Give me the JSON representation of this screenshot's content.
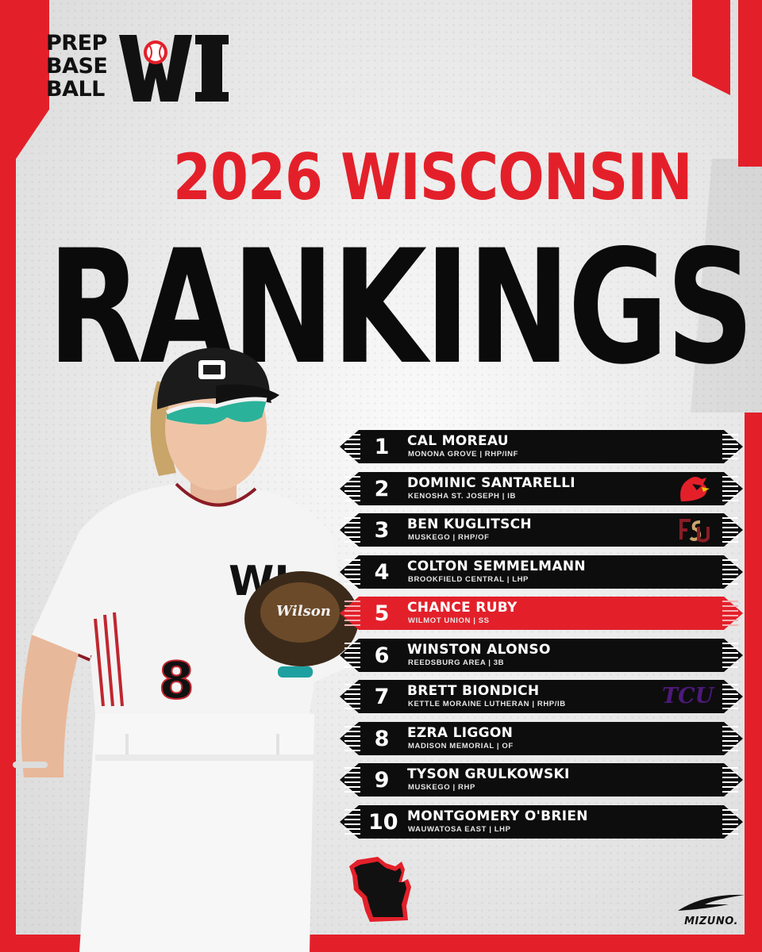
{
  "logo": {
    "lines": [
      "PREP",
      "BASE",
      "BALL"
    ],
    "mark": "WI"
  },
  "heading": {
    "year_line": "2026 WISCONSIN",
    "main": "RANKINGS"
  },
  "colors": {
    "accent_red": "#e3202a",
    "row_black": "#0d0d0d",
    "highlight_row": "#e3202a"
  },
  "rankings": [
    {
      "rank": "1",
      "name": "CAL MOREAU",
      "meta": "MONONA GROVE | RHP/INF",
      "badge": null,
      "highlight": false
    },
    {
      "rank": "2",
      "name": "DOMINIC SANTARELLI",
      "meta": "KENOSHA ST. JOSEPH | IB",
      "badge": "cardinal-logo-icon",
      "highlight": false
    },
    {
      "rank": "3",
      "name": "BEN KUGLITSCH",
      "meta": "MUSKEGO | RHP/OF",
      "badge": "fsu-logo-icon",
      "highlight": false
    },
    {
      "rank": "4",
      "name": "COLTON SEMMELMANN",
      "meta": "BROOKFIELD CENTRAL | LHP",
      "badge": null,
      "highlight": false
    },
    {
      "rank": "5",
      "name": "CHANCE RUBY",
      "meta": "WILMOT UNION | SS",
      "badge": null,
      "highlight": true
    },
    {
      "rank": "6",
      "name": "WINSTON ALONSO",
      "meta": "REEDSBURG AREA | 3B",
      "badge": null,
      "highlight": false
    },
    {
      "rank": "7",
      "name": "BRETT BIONDICH",
      "meta": "KETTLE MORAINE LUTHERAN | RHP/IB",
      "badge": "tcu-logo-icon",
      "badge_text": "TCU",
      "highlight": false
    },
    {
      "rank": "8",
      "name": "EZRA LIGGON",
      "meta": "MADISON MEMORIAL | OF",
      "badge": null,
      "highlight": false
    },
    {
      "rank": "9",
      "name": "TYSON GRULKOWSKI",
      "meta": "MUSKEGO | RHP",
      "badge": null,
      "highlight": false
    },
    {
      "rank": "10",
      "name": "MONTGOMERY O'BRIEN",
      "meta": "WAUWATOSA EAST | LHP",
      "badge": null,
      "highlight": false
    }
  ],
  "player": {
    "jersey_number": "8",
    "jersey_mark": "WI",
    "glove_brand": "Wilson"
  },
  "sponsor": {
    "name": "MIZUNO."
  }
}
